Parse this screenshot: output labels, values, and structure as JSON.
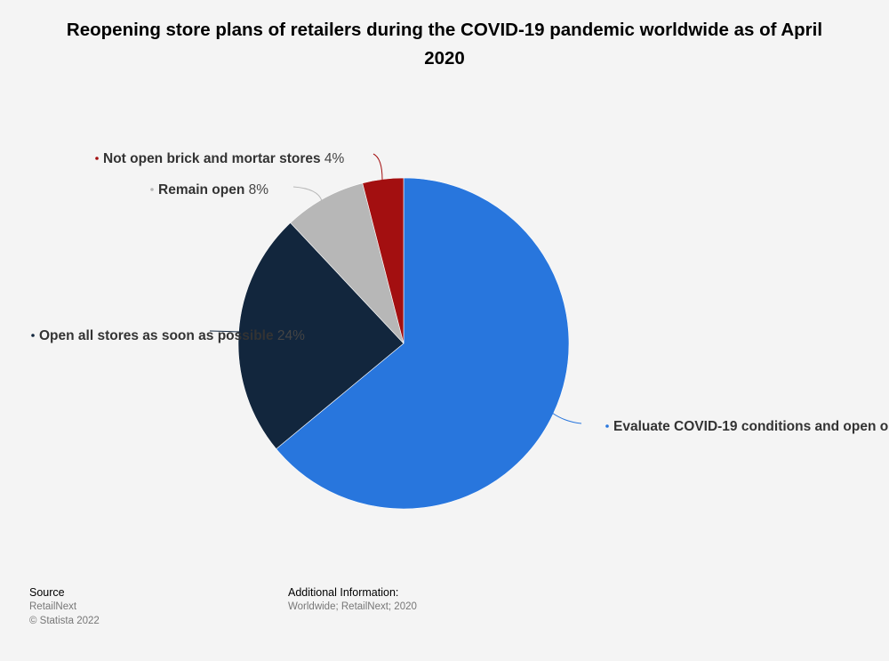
{
  "chart_data": {
    "type": "pie",
    "title": "Reopening store plans of retailers during the COVID-19 pandemic worldwide as of April 2020",
    "slices": [
      {
        "label": "Evaluate COVID-19 conditions and open o",
        "value": 64,
        "value_label": "",
        "color": "#2876dd"
      },
      {
        "label": "Open all stores as soon as possible",
        "value": 24,
        "value_label": "24%",
        "color": "#12263d"
      },
      {
        "label": "Remain open",
        "value": 8,
        "value_label": "8%",
        "color": "#b7b7b7"
      },
      {
        "label": "Not open brick and mortar stores",
        "value": 4,
        "value_label": "4%",
        "color": "#a30f10"
      }
    ]
  },
  "footer": {
    "source_heading": "Source",
    "source_name": "RetailNext",
    "copyright": "© Statista 2022",
    "additional_heading": "Additional Information:",
    "additional_text": "Worldwide; RetailNext; 2020"
  }
}
